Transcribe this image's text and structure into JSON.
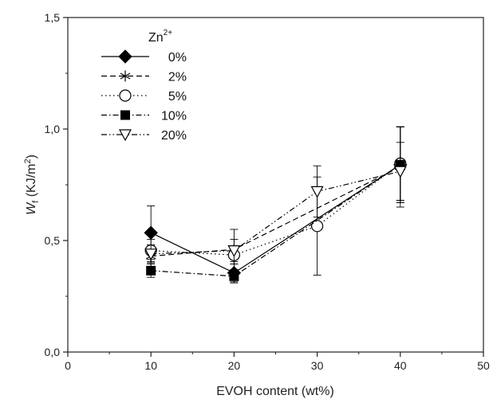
{
  "chart_data": {
    "type": "line",
    "title": "",
    "xlabel": "EVOH content (wt%)",
    "ylabel": {
      "main": "W",
      "subscript": "f",
      "unit_prefix": " (KJ/m",
      "unit_sup": "2",
      "unit_suffix": ")"
    },
    "xlim": [
      0,
      50
    ],
    "ylim": [
      0,
      1.5
    ],
    "x_ticks": [
      0,
      10,
      20,
      30,
      40,
      50
    ],
    "x_tick_labels": [
      "0",
      "10",
      "20",
      "30",
      "40",
      "50"
    ],
    "y_ticks": [
      0,
      0.5,
      1.0,
      1.5
    ],
    "y_tick_labels": [
      "0,0",
      "0,5",
      "1,0",
      "1,5"
    ],
    "grid": false,
    "legend": {
      "title_main": "Zn",
      "title_sup": "2+",
      "placement": "top-left"
    },
    "series": [
      {
        "name": "0%",
        "marker": "diamond-filled",
        "dash": "solid",
        "x": [
          10,
          20,
          40
        ],
        "y": [
          0.535,
          0.355,
          0.84
        ],
        "err": [
          0.12,
          0.04,
          0.17
        ]
      },
      {
        "name": "2%",
        "marker": "asterisk",
        "dash": "dash",
        "x": [
          10,
          20,
          40
        ],
        "y": [
          0.43,
          0.46,
          0.83
        ],
        "err": [
          0.05,
          0.09,
          0.18
        ]
      },
      {
        "name": "5%",
        "marker": "circle-open",
        "dash": "dot",
        "x": [
          10,
          20,
          30,
          40
        ],
        "y": [
          0.455,
          0.435,
          0.565,
          0.845
        ],
        "err": [
          0.05,
          0.04,
          0.22,
          0.165
        ]
      },
      {
        "name": "10%",
        "marker": "square-filled",
        "dash": "dashdot",
        "x": [
          10,
          20,
          40
        ],
        "y": [
          0.365,
          0.34,
          0.84
        ],
        "err": [
          0.03,
          0.03,
          0.17
        ]
      },
      {
        "name": "20%",
        "marker": "triangle-down-open",
        "dash": "dashdotdot",
        "x": [
          10,
          20,
          30,
          40
        ],
        "y": [
          0.44,
          0.455,
          0.72,
          0.81
        ],
        "err": [
          0.04,
          0.05,
          0.115,
          0.13
        ]
      }
    ]
  }
}
